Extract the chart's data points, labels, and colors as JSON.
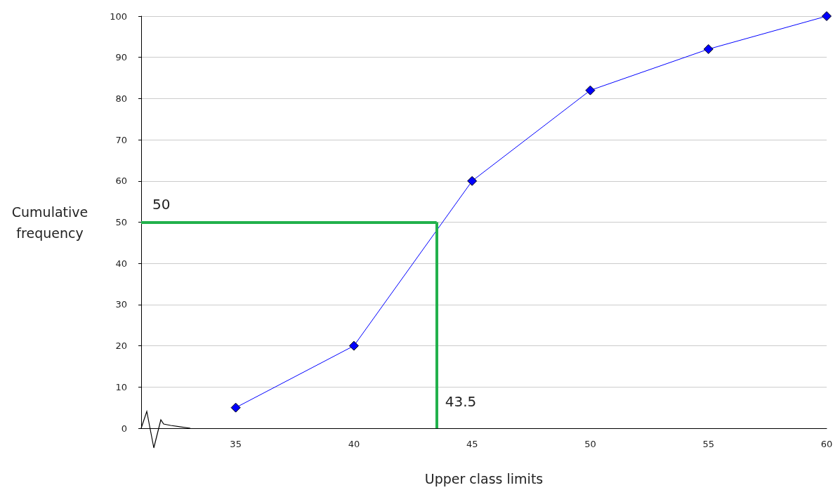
{
  "chart_data": {
    "type": "line",
    "xlabel": "Upper class limits",
    "ylabel": "Cumulative frequency",
    "x": [
      35,
      40,
      45,
      50,
      55,
      60
    ],
    "series": [
      {
        "color": "#0000ff",
        "values": [
          5,
          20,
          60,
          82,
          92,
          100
        ]
      }
    ],
    "marker": "diamond",
    "line_style": "solid",
    "xlim": [
      31,
      60
    ],
    "xticks": [
      35,
      40,
      45,
      50,
      55,
      60
    ],
    "ylim": [
      0,
      100
    ],
    "yticks": [
      0,
      10,
      20,
      30,
      40,
      50,
      60,
      70,
      80,
      90,
      100
    ],
    "grid": "y",
    "ref_lines": [
      {
        "axis": "y",
        "value": 50,
        "label": "50",
        "color": "#22b14c"
      },
      {
        "axis": "x",
        "value": 43.5,
        "label": "43.5",
        "color": "#22b14c"
      }
    ]
  }
}
